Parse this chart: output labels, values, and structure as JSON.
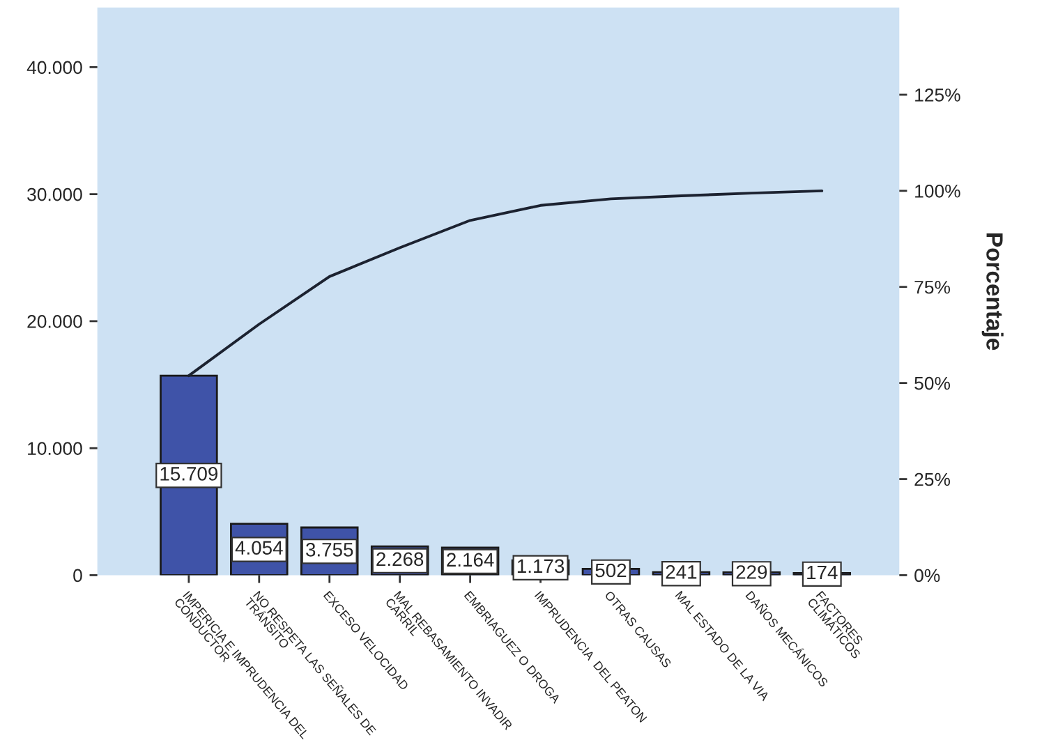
{
  "chart_data": {
    "type": "bar",
    "categories": [
      "IMPERICIA E IMPRUDENCIA DEL\nCONDUCTOR",
      "NO RESPETA LAS SEÑALES DE\nTRÁNSITO",
      "EXCESO VELOCIDAD",
      "MAL REBASAMIENTO INVADIR\nCARRIL",
      "EMBRIAGUEZ O DROGA",
      "IMPRUDENCIA  DEL PEATON",
      "OTRAS CAUSAS",
      "MAL ESTADO DE LA VIA",
      "DAÑOS MECÁNICOS",
      "FACTORES\nCLIMÁTICOS"
    ],
    "series": [
      {
        "color": "#3f53a8",
        "values": [
          15709,
          4054,
          3755,
          2268,
          2164,
          1173,
          502,
          241,
          229,
          174
        ],
        "value_labels": [
          "15.709",
          "4.054",
          "3.755",
          "2.268",
          "2.164",
          "1.173",
          "502",
          "241",
          "229",
          "174"
        ]
      },
      {
        "type": "line",
        "axis": "y2",
        "color": "#1c2230",
        "values": [
          51.9,
          65.3,
          77.7,
          85.2,
          92.3,
          96.2,
          97.9,
          98.7,
          99.4,
          100
        ]
      }
    ],
    "ylim": [
      0,
      44700
    ],
    "yticks": [
      {
        "value": 0,
        "label": "0"
      },
      {
        "value": 10000,
        "label": "10.000"
      },
      {
        "value": 20000,
        "label": "20.000"
      },
      {
        "value": 30000,
        "label": "30.000"
      },
      {
        "value": 40000,
        "label": "40.000"
      }
    ],
    "y2lim": [
      0,
      147.7
    ],
    "y2ticks": [
      {
        "value": 0,
        "label": "0%"
      },
      {
        "value": 25,
        "label": "25%"
      },
      {
        "value": 50,
        "label": "50%"
      },
      {
        "value": 75,
        "label": "75%"
      },
      {
        "value": 100,
        "label": "100%"
      },
      {
        "value": 125,
        "label": "125%"
      }
    ],
    "y2label": "Porcentaje",
    "grid": false,
    "marker": "none",
    "line_style": "solid"
  }
}
